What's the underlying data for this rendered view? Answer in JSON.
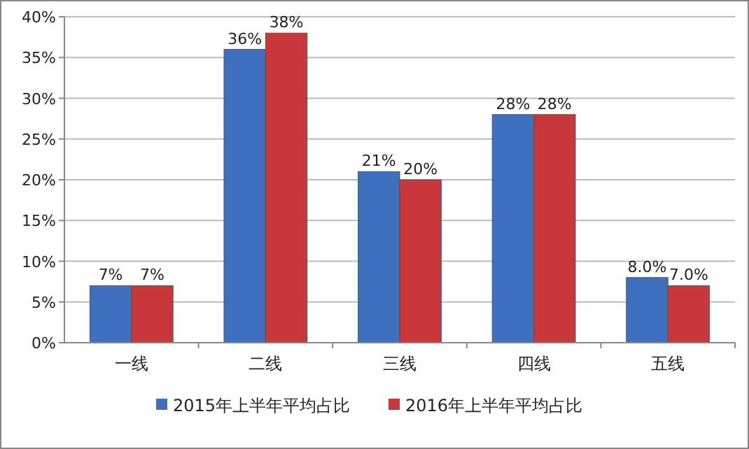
{
  "chart_data": {
    "type": "bar",
    "categories": [
      "一线",
      "二线",
      "三线",
      "四线",
      "五线"
    ],
    "series": [
      {
        "name": "2015年上半年平均占比",
        "color": "#3f6fbf",
        "values": [
          7,
          36,
          21,
          28,
          8.0
        ],
        "value_labels": [
          "7%",
          "36%",
          "21%",
          "28%",
          "8.0%"
        ]
      },
      {
        "name": "2016年上半年平均占比",
        "color": "#c8383a",
        "values": [
          7,
          38,
          20,
          28,
          7.0
        ],
        "value_labels": [
          "7%",
          "38%",
          "20%",
          "28%",
          "7.0%"
        ]
      }
    ],
    "ylim": [
      0,
      40
    ],
    "yticks": [
      {
        "value": 0,
        "label": "0%"
      },
      {
        "value": 5,
        "label": "5%"
      },
      {
        "value": 10,
        "label": "10%"
      },
      {
        "value": 15,
        "label": "15%"
      },
      {
        "value": 20,
        "label": "20%"
      },
      {
        "value": 25,
        "label": "25%"
      },
      {
        "value": 30,
        "label": "30%"
      },
      {
        "value": 35,
        "label": "35%"
      },
      {
        "value": 40,
        "label": "40%"
      }
    ],
    "grid": "y",
    "legend": "bottom"
  }
}
